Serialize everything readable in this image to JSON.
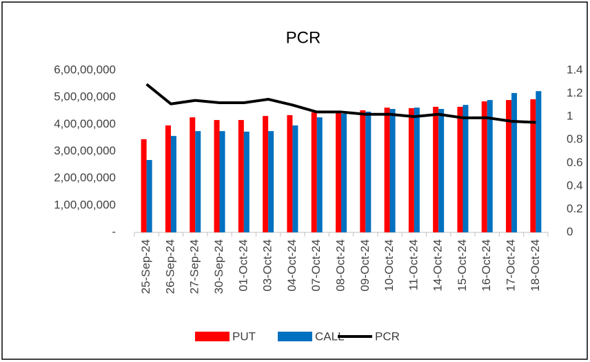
{
  "chart_data": {
    "type": "bar",
    "title": "PCR",
    "categories": [
      "25-Sep-24",
      "26-Sep-24",
      "27-Sep-24",
      "30-Sep-24",
      "01-Oct-24",
      "03-Oct-24",
      "04-Oct-24",
      "07-Oct-24",
      "08-Oct-24",
      "09-Oct-24",
      "10-Oct-24",
      "11-Oct-24",
      "14-Oct-24",
      "15-Oct-24",
      "16-Oct-24",
      "17-Oct-24",
      "18-Oct-24"
    ],
    "series": [
      {
        "name": "PUT",
        "color": "#ff0000",
        "type": "bar",
        "values": [
          34500000,
          39600000,
          42600000,
          41600000,
          41600000,
          43100000,
          43400000,
          44400000,
          44400000,
          45200000,
          46200000,
          46000000,
          46500000,
          46500000,
          48500000,
          49000000,
          49300000
        ]
      },
      {
        "name": "CALL",
        "color": "#0070c0",
        "type": "bar",
        "values": [
          26800000,
          35700000,
          37500000,
          37500000,
          37300000,
          37500000,
          39600000,
          42600000,
          43900000,
          44700000,
          45700000,
          46200000,
          45700000,
          47200000,
          49000000,
          51600000,
          52300000
        ]
      },
      {
        "name": "PCR",
        "color": "#000000",
        "type": "line",
        "axis": "y2",
        "values": [
          1.28,
          1.11,
          1.14,
          1.12,
          1.12,
          1.15,
          1.1,
          1.04,
          1.04,
          1.02,
          1.02,
          1.0,
          1.02,
          0.99,
          0.99,
          0.96,
          0.95
        ]
      }
    ],
    "ylim": [
      0,
      60000000
    ],
    "yticks": [
      {
        "value": 0,
        "label": "-"
      },
      {
        "value": 10000000,
        "label": "1,00,00,000"
      },
      {
        "value": 20000000,
        "label": "2,00,00,000"
      },
      {
        "value": 30000000,
        "label": "3,00,00,000"
      },
      {
        "value": 40000000,
        "label": "4,00,00,000"
      },
      {
        "value": 50000000,
        "label": "5,00,00,000"
      },
      {
        "value": 60000000,
        "label": "6,00,00,000"
      }
    ],
    "y2lim": [
      0,
      1.4
    ],
    "y2ticks": [
      0,
      0.2,
      0.4,
      0.6,
      0.8,
      1,
      1.2,
      1.4
    ],
    "legend": "bottom",
    "grid": false
  }
}
